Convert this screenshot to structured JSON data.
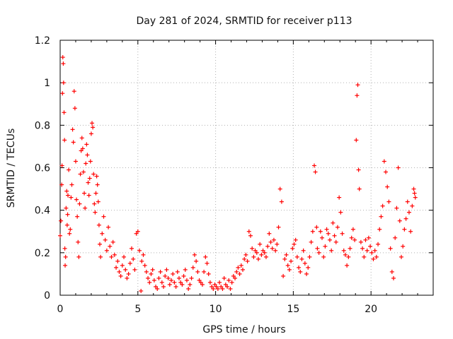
{
  "chart_data": {
    "type": "scatter",
    "title": "Day 281 of 2024, SRMTID for receiver p113",
    "xlabel": "GPS time / hours",
    "ylabel": "SRMTID / TECUs",
    "xlim": [
      0,
      24
    ],
    "ylim": [
      0,
      1.2
    ],
    "x_ticks": [
      0,
      5,
      10,
      15,
      20
    ],
    "x_tick_labels": [
      "0",
      "5",
      "10",
      "15",
      "20"
    ],
    "y_ticks": [
      0,
      0.2,
      0.4,
      0.6,
      0.8,
      1.0,
      1.2
    ],
    "y_tick_labels": [
      "0",
      "0.2",
      "0.4",
      "0.6",
      "0.8",
      "1",
      "1.2"
    ],
    "grid": true,
    "marker": "plus",
    "colors": {
      "series": "#ff0000",
      "grid": "#b0b0b0",
      "axis": "#000000"
    },
    "series": [
      {
        "name": "SRMTID",
        "points": [
          [
            0.0,
            0.28
          ],
          [
            0.05,
            0.35
          ],
          [
            0.1,
            0.52
          ],
          [
            0.12,
            0.61
          ],
          [
            0.15,
            0.95
          ],
          [
            0.17,
            1.12
          ],
          [
            0.2,
            1.09
          ],
          [
            0.22,
            1.0
          ],
          [
            0.25,
            0.86
          ],
          [
            0.28,
            0.73
          ],
          [
            0.3,
            0.22
          ],
          [
            0.32,
            0.14
          ],
          [
            0.35,
            0.18
          ],
          [
            0.38,
            0.41
          ],
          [
            0.42,
            0.49
          ],
          [
            0.45,
            0.33
          ],
          [
            0.48,
            0.38
          ],
          [
            0.5,
            0.47
          ],
          [
            0.55,
            0.59
          ],
          [
            0.6,
            0.29
          ],
          [
            0.65,
            0.31
          ],
          [
            0.7,
            0.46
          ],
          [
            0.75,
            0.52
          ],
          [
            0.8,
            0.78
          ],
          [
            0.85,
            0.72
          ],
          [
            0.9,
            0.96
          ],
          [
            0.95,
            0.88
          ],
          [
            1.0,
            0.63
          ],
          [
            1.05,
            0.45
          ],
          [
            1.1,
            0.37
          ],
          [
            1.15,
            0.25
          ],
          [
            1.2,
            0.18
          ],
          [
            1.25,
            0.43
          ],
          [
            1.3,
            0.57
          ],
          [
            1.35,
            0.68
          ],
          [
            1.4,
            0.74
          ],
          [
            1.45,
            0.69
          ],
          [
            1.5,
            0.58
          ],
          [
            1.55,
            0.48
          ],
          [
            1.6,
            0.41
          ],
          [
            1.65,
            0.62
          ],
          [
            1.7,
            0.71
          ],
          [
            1.75,
            0.66
          ],
          [
            1.8,
            0.53
          ],
          [
            1.85,
            0.47
          ],
          [
            1.9,
            0.55
          ],
          [
            1.95,
            0.63
          ],
          [
            2.0,
            0.76
          ],
          [
            2.05,
            0.81
          ],
          [
            2.1,
            0.79
          ],
          [
            2.15,
            0.57
          ],
          [
            2.2,
            0.43
          ],
          [
            2.25,
            0.39
          ],
          [
            2.3,
            0.48
          ],
          [
            2.35,
            0.56
          ],
          [
            2.4,
            0.52
          ],
          [
            2.45,
            0.44
          ],
          [
            2.5,
            0.33
          ],
          [
            2.55,
            0.24
          ],
          [
            2.6,
            0.18
          ],
          [
            2.7,
            0.29
          ],
          [
            2.8,
            0.37
          ],
          [
            2.9,
            0.26
          ],
          [
            3.0,
            0.21
          ],
          [
            3.1,
            0.32
          ],
          [
            3.2,
            0.23
          ],
          [
            3.3,
            0.18
          ],
          [
            3.4,
            0.25
          ],
          [
            3.5,
            0.19
          ],
          [
            3.6,
            0.13
          ],
          [
            3.7,
            0.16
          ],
          [
            3.8,
            0.11
          ],
          [
            3.9,
            0.09
          ],
          [
            4.0,
            0.14
          ],
          [
            4.1,
            0.18
          ],
          [
            4.2,
            0.12
          ],
          [
            4.3,
            0.08
          ],
          [
            4.4,
            0.1
          ],
          [
            4.5,
            0.15
          ],
          [
            4.6,
            0.22
          ],
          [
            4.7,
            0.17
          ],
          [
            4.8,
            0.12
          ],
          [
            4.9,
            0.29
          ],
          [
            5.0,
            0.3
          ],
          [
            5.1,
            0.21
          ],
          [
            5.2,
            0.02
          ],
          [
            5.25,
            0.16
          ],
          [
            5.35,
            0.19
          ],
          [
            5.45,
            0.14
          ],
          [
            5.55,
            0.11
          ],
          [
            5.65,
            0.08
          ],
          [
            5.75,
            0.06
          ],
          [
            5.85,
            0.1
          ],
          [
            5.95,
            0.12
          ],
          [
            6.05,
            0.07
          ],
          [
            6.15,
            0.04
          ],
          [
            6.25,
            0.03
          ],
          [
            6.35,
            0.08
          ],
          [
            6.45,
            0.11
          ],
          [
            6.55,
            0.06
          ],
          [
            6.65,
            0.04
          ],
          [
            6.75,
            0.09
          ],
          [
            6.85,
            0.12
          ],
          [
            6.95,
            0.08
          ],
          [
            7.05,
            0.05
          ],
          [
            7.15,
            0.07
          ],
          [
            7.25,
            0.1
          ],
          [
            7.35,
            0.06
          ],
          [
            7.45,
            0.04
          ],
          [
            7.55,
            0.11
          ],
          [
            7.65,
            0.08
          ],
          [
            7.75,
            0.06
          ],
          [
            7.85,
            0.05
          ],
          [
            7.95,
            0.09
          ],
          [
            8.05,
            0.12
          ],
          [
            8.15,
            0.07
          ],
          [
            8.25,
            0.03
          ],
          [
            8.35,
            0.05
          ],
          [
            8.45,
            0.08
          ],
          [
            8.55,
            0.13
          ],
          [
            8.65,
            0.19
          ],
          [
            8.75,
            0.16
          ],
          [
            8.85,
            0.11
          ],
          [
            8.95,
            0.07
          ],
          [
            9.05,
            0.06
          ],
          [
            9.15,
            0.05
          ],
          [
            9.25,
            0.11
          ],
          [
            9.35,
            0.18
          ],
          [
            9.45,
            0.15
          ],
          [
            9.55,
            0.1
          ],
          [
            9.65,
            0.06
          ],
          [
            9.75,
            0.04
          ],
          [
            9.85,
            0.03
          ],
          [
            9.95,
            0.05
          ],
          [
            10.05,
            0.04
          ],
          [
            10.15,
            0.03
          ],
          [
            10.25,
            0.06
          ],
          [
            10.35,
            0.04
          ],
          [
            10.45,
            0.03
          ],
          [
            10.55,
            0.08
          ],
          [
            10.65,
            0.05
          ],
          [
            10.75,
            0.04
          ],
          [
            10.85,
            0.07
          ],
          [
            10.95,
            0.03
          ],
          [
            11.05,
            0.06
          ],
          [
            11.15,
            0.09
          ],
          [
            11.25,
            0.08
          ],
          [
            11.35,
            0.11
          ],
          [
            11.45,
            0.13
          ],
          [
            11.55,
            0.1
          ],
          [
            11.65,
            0.14
          ],
          [
            11.75,
            0.12
          ],
          [
            11.85,
            0.17
          ],
          [
            11.95,
            0.19
          ],
          [
            12.05,
            0.16
          ],
          [
            12.15,
            0.3
          ],
          [
            12.25,
            0.28
          ],
          [
            12.35,
            0.22
          ],
          [
            12.45,
            0.18
          ],
          [
            12.55,
            0.21
          ],
          [
            12.65,
            0.2
          ],
          [
            12.75,
            0.17
          ],
          [
            12.85,
            0.24
          ],
          [
            12.95,
            0.19
          ],
          [
            13.05,
            0.21
          ],
          [
            13.15,
            0.2
          ],
          [
            13.25,
            0.18
          ],
          [
            13.35,
            0.23
          ],
          [
            13.45,
            0.29
          ],
          [
            13.55,
            0.25
          ],
          [
            13.65,
            0.22
          ],
          [
            13.75,
            0.26
          ],
          [
            13.85,
            0.21
          ],
          [
            13.95,
            0.24
          ],
          [
            14.05,
            0.32
          ],
          [
            14.15,
            0.5
          ],
          [
            14.25,
            0.44
          ],
          [
            14.35,
            0.09
          ],
          [
            14.45,
            0.17
          ],
          [
            14.55,
            0.19
          ],
          [
            14.65,
            0.14
          ],
          [
            14.75,
            0.12
          ],
          [
            14.85,
            0.16
          ],
          [
            14.95,
            0.22
          ],
          [
            15.05,
            0.24
          ],
          [
            15.15,
            0.26
          ],
          [
            15.25,
            0.18
          ],
          [
            15.35,
            0.13
          ],
          [
            15.45,
            0.11
          ],
          [
            15.55,
            0.17
          ],
          [
            15.65,
            0.21
          ],
          [
            15.75,
            0.15
          ],
          [
            15.85,
            0.1
          ],
          [
            15.95,
            0.13
          ],
          [
            16.05,
            0.18
          ],
          [
            16.15,
            0.25
          ],
          [
            16.25,
            0.3
          ],
          [
            16.35,
            0.61
          ],
          [
            16.42,
            0.58
          ],
          [
            16.5,
            0.32
          ],
          [
            16.55,
            0.22
          ],
          [
            16.65,
            0.2
          ],
          [
            16.75,
            0.3
          ],
          [
            16.85,
            0.27
          ],
          [
            16.95,
            0.18
          ],
          [
            17.05,
            0.23
          ],
          [
            17.15,
            0.31
          ],
          [
            17.25,
            0.29
          ],
          [
            17.35,
            0.26
          ],
          [
            17.45,
            0.21
          ],
          [
            17.55,
            0.34
          ],
          [
            17.65,
            0.28
          ],
          [
            17.75,
            0.25
          ],
          [
            17.85,
            0.32
          ],
          [
            17.95,
            0.46
          ],
          [
            18.05,
            0.39
          ],
          [
            18.15,
            0.29
          ],
          [
            18.25,
            0.21
          ],
          [
            18.35,
            0.19
          ],
          [
            18.45,
            0.14
          ],
          [
            18.55,
            0.18
          ],
          [
            18.65,
            0.22
          ],
          [
            18.75,
            0.27
          ],
          [
            18.85,
            0.31
          ],
          [
            18.95,
            0.26
          ],
          [
            19.05,
            0.73
          ],
          [
            19.1,
            0.94
          ],
          [
            19.15,
            0.99
          ],
          [
            19.2,
            0.59
          ],
          [
            19.25,
            0.5
          ],
          [
            19.35,
            0.25
          ],
          [
            19.45,
            0.22
          ],
          [
            19.55,
            0.18
          ],
          [
            19.65,
            0.26
          ],
          [
            19.75,
            0.21
          ],
          [
            19.85,
            0.27
          ],
          [
            19.95,
            0.23
          ],
          [
            20.05,
            0.2
          ],
          [
            20.15,
            0.17
          ],
          [
            20.25,
            0.21
          ],
          [
            20.35,
            0.18
          ],
          [
            20.45,
            0.24
          ],
          [
            20.55,
            0.31
          ],
          [
            20.65,
            0.37
          ],
          [
            20.75,
            0.42
          ],
          [
            20.85,
            0.63
          ],
          [
            20.95,
            0.58
          ],
          [
            21.05,
            0.51
          ],
          [
            21.15,
            0.44
          ],
          [
            21.25,
            0.22
          ],
          [
            21.35,
            0.11
          ],
          [
            21.45,
            0.08
          ],
          [
            21.55,
            0.27
          ],
          [
            21.65,
            0.41
          ],
          [
            21.75,
            0.6
          ],
          [
            21.85,
            0.35
          ],
          [
            21.95,
            0.18
          ],
          [
            22.05,
            0.23
          ],
          [
            22.15,
            0.31
          ],
          [
            22.25,
            0.36
          ],
          [
            22.35,
            0.44
          ],
          [
            22.45,
            0.39
          ],
          [
            22.55,
            0.3
          ],
          [
            22.65,
            0.42
          ],
          [
            22.75,
            0.5
          ],
          [
            22.8,
            0.48
          ],
          [
            22.85,
            0.46
          ]
        ]
      }
    ]
  }
}
